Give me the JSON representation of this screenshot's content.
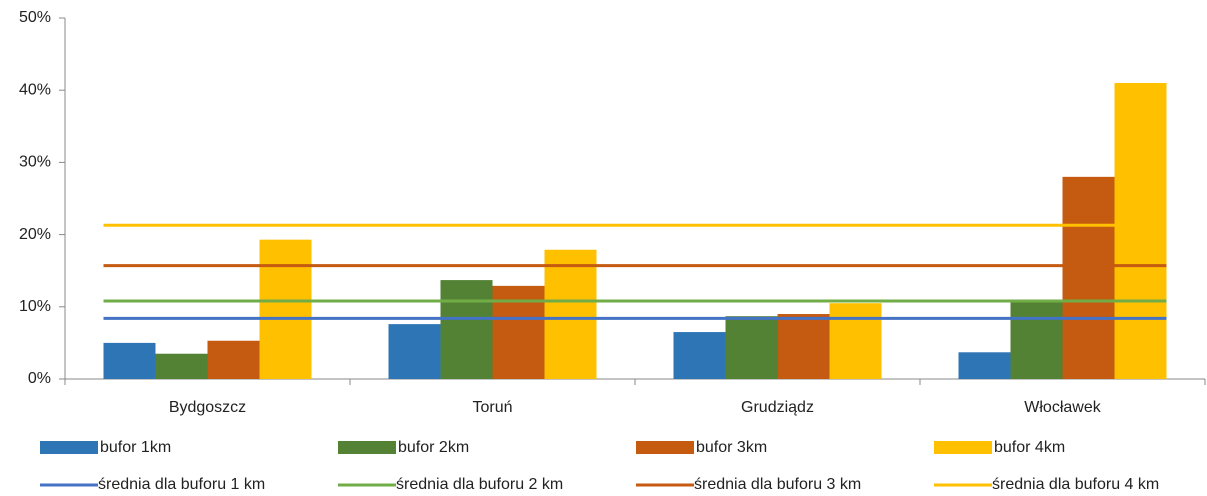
{
  "chart_data": {
    "type": "bar",
    "categories": [
      "Bydgoszcz",
      "Toruń",
      "Grudziądz",
      "Włocławek"
    ],
    "series": [
      {
        "name": "bufor 1km",
        "color": "#2e75b6",
        "values": [
          5.0,
          7.6,
          6.5,
          3.7
        ]
      },
      {
        "name": "bufor 2km",
        "color": "#548235",
        "values": [
          3.5,
          13.7,
          8.7,
          10.9
        ]
      },
      {
        "name": "bufor 3km",
        "color": "#c55a11",
        "values": [
          5.3,
          12.9,
          9.0,
          28.0
        ]
      },
      {
        "name": "bufor 4km",
        "color": "#ffc000",
        "values": [
          19.3,
          17.9,
          10.5,
          41.0
        ]
      }
    ],
    "average_lines": [
      {
        "name": "średnia dla buforu 1 km",
        "color": "#4472c4",
        "value": 8.4
      },
      {
        "name": "średnia dla buforu 2 km",
        "color": "#70ad47",
        "value": 10.8
      },
      {
        "name": "średnia dla buforu 3 km",
        "color": "#c55a11",
        "value": 15.7
      },
      {
        "name": "średnia dla buforu 4 km",
        "color": "#ffc000",
        "value": 21.3
      }
    ],
    "ylim": [
      0,
      50
    ],
    "yticks": [
      {
        "value": 0,
        "label": "0%"
      },
      {
        "value": 10,
        "label": "10%"
      },
      {
        "value": 20,
        "label": "20%"
      },
      {
        "value": 30,
        "label": "30%"
      },
      {
        "value": 40,
        "label": "40%"
      },
      {
        "value": 50,
        "label": "50%"
      }
    ]
  }
}
